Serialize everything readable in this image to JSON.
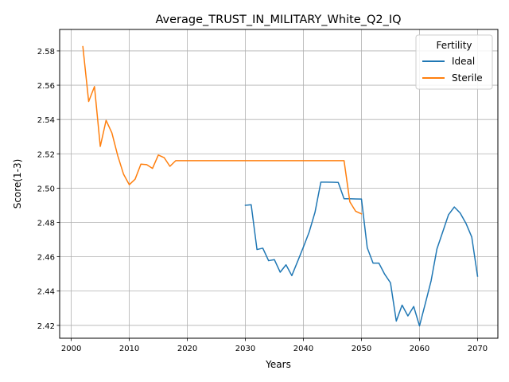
{
  "chart_data": {
    "type": "line",
    "title": "Average_TRUST_IN_MILITARY_White_Q2_IQ",
    "xlabel": "Years",
    "ylabel": "Score(1-3)",
    "xlim": [
      1998,
      2073.5
    ],
    "ylim": [
      2.4125,
      2.5925
    ],
    "xticks": [
      2000,
      2010,
      2020,
      2030,
      2040,
      2050,
      2060,
      2070
    ],
    "yticks": [
      2.42,
      2.44,
      2.46,
      2.48,
      2.5,
      2.52,
      2.54,
      2.56,
      2.58
    ],
    "grid": true,
    "legend": {
      "title": "Fertility",
      "placement": "top-right"
    },
    "series": [
      {
        "name": "Ideal",
        "color": "#1f77b4",
        "x": [
          2030,
          2031,
          2032,
          2033,
          2034,
          2035,
          2036,
          2037,
          2038,
          2039,
          2040,
          2041,
          2042,
          2043,
          2044,
          2045,
          2046,
          2047,
          2048,
          2049,
          2050,
          2051,
          2052,
          2053,
          2054,
          2055,
          2056,
          2057,
          2058,
          2059,
          2060,
          2061,
          2062,
          2063,
          2064,
          2065,
          2066,
          2067,
          2068,
          2069,
          2070
        ],
        "values": [
          2.49,
          2.4903,
          2.4642,
          2.465,
          2.4577,
          2.4583,
          2.451,
          2.4553,
          2.449,
          2.4573,
          2.4657,
          2.4745,
          2.486,
          2.5035,
          2.5035,
          2.5034,
          2.5033,
          2.4938,
          2.4938,
          2.4937,
          2.4936,
          2.4652,
          2.4563,
          2.4563,
          2.4498,
          2.4448,
          2.4225,
          2.4318,
          2.4255,
          2.431,
          2.4197,
          2.4327,
          2.446,
          2.4645,
          2.4745,
          2.4845,
          2.489,
          2.4855,
          2.4795,
          2.4715,
          2.4487
        ]
      },
      {
        "name": "Sterile",
        "color": "#ff7f0e",
        "x": [
          2002,
          2003,
          2004,
          2005,
          2006,
          2007,
          2008,
          2009,
          2010,
          2011,
          2012,
          2013,
          2014,
          2015,
          2016,
          2017,
          2018,
          2019,
          2020,
          2030,
          2040,
          2047,
          2048,
          2049,
          2050
        ],
        "values": [
          2.5825,
          2.5505,
          2.5592,
          2.5243,
          2.5395,
          2.5322,
          2.519,
          2.5082,
          2.502,
          2.5052,
          2.514,
          2.5137,
          2.5115,
          2.5193,
          2.5178,
          2.5127,
          2.516,
          2.516,
          2.516,
          2.516,
          2.516,
          2.516,
          2.492,
          2.4865,
          2.485
        ]
      }
    ]
  }
}
